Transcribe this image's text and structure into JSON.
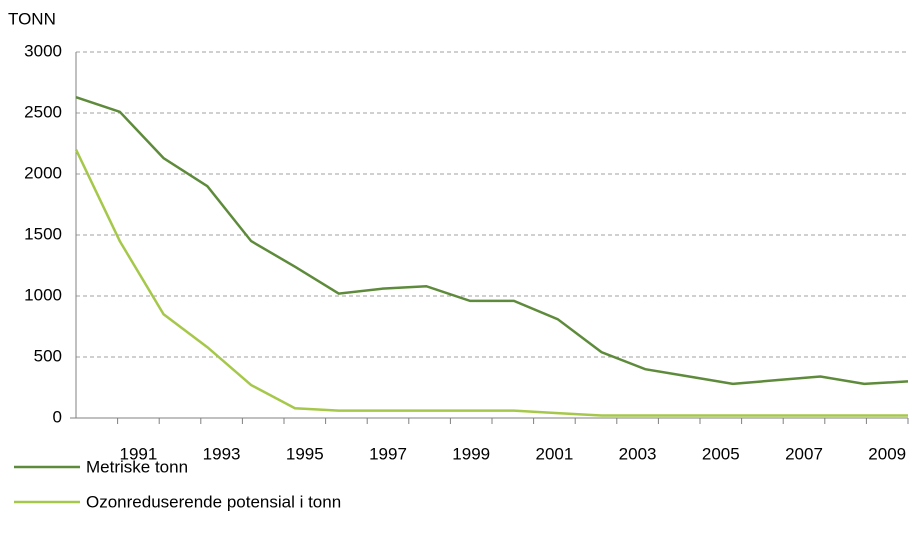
{
  "chart_data": {
    "type": "line",
    "y_axis_label": "TONN",
    "categories": [
      null,
      "1991",
      null,
      "1993",
      null,
      "1995",
      null,
      "1997",
      null,
      "1999",
      null,
      "2001",
      null,
      "2003",
      null,
      "2005",
      null,
      "2007",
      null,
      "2009"
    ],
    "series": [
      {
        "name": "Metriske tonn",
        "color": "#5e8b3b",
        "values": [
          2630,
          2510,
          2130,
          1900,
          1450,
          1240,
          1020,
          1060,
          1080,
          960,
          960,
          810,
          540,
          400,
          340,
          280,
          310,
          340,
          280,
          300
        ]
      },
      {
        "name": "Ozonreduserende potensial i tonn",
        "color": "#a6c84a",
        "values": [
          2200,
          1450,
          850,
          580,
          270,
          80,
          60,
          60,
          60,
          60,
          60,
          40,
          20,
          20,
          20,
          20,
          20,
          20,
          20,
          20
        ]
      }
    ],
    "ylim": [
      0,
      3000
    ],
    "yticks": [
      0,
      500,
      1000,
      1500,
      2000,
      2500,
      3000
    ],
    "grid": true,
    "legend": "bottom"
  }
}
